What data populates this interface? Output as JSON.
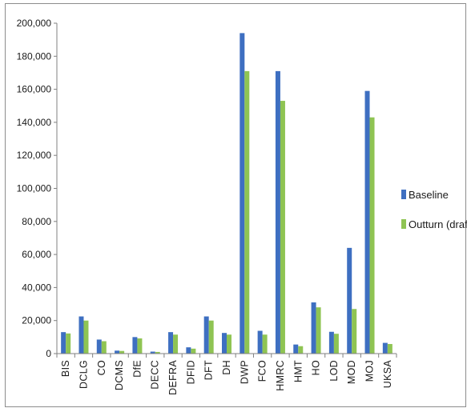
{
  "chart_data": {
    "type": "bar",
    "categories": [
      "BIS",
      "DCLG",
      "CO",
      "DCMS",
      "DfE",
      "DECC",
      "DEFRA",
      "DFID",
      "DFT",
      "DH",
      "DWP",
      "FCO",
      "HMRC",
      "HMT",
      "HO",
      "LOD",
      "MOD",
      "MOJ",
      "UKSA"
    ],
    "series": [
      {
        "name": "Baseline",
        "color": "#3e6fc1",
        "values": [
          13000,
          22500,
          8500,
          1800,
          10000,
          1200,
          13000,
          3800,
          22500,
          12500,
          194000,
          13800,
          171000,
          5500,
          31000,
          13200,
          64000,
          159000,
          6500
        ]
      },
      {
        "name": "Outturn (draft)",
        "color": "#8fc453",
        "values": [
          12200,
          20000,
          7500,
          1600,
          9200,
          1000,
          11500,
          3000,
          20000,
          11500,
          171000,
          11500,
          153000,
          4500,
          28000,
          12000,
          27000,
          143000,
          5800
        ]
      }
    ],
    "yticks": [
      "0",
      "20,000",
      "40,000",
      "60,000",
      "80,000",
      "100,000",
      "120,000",
      "140,000",
      "160,000",
      "180,000",
      "200,000"
    ],
    "ylim": [
      0,
      200000
    ],
    "legend_position": "right",
    "grid": false
  }
}
